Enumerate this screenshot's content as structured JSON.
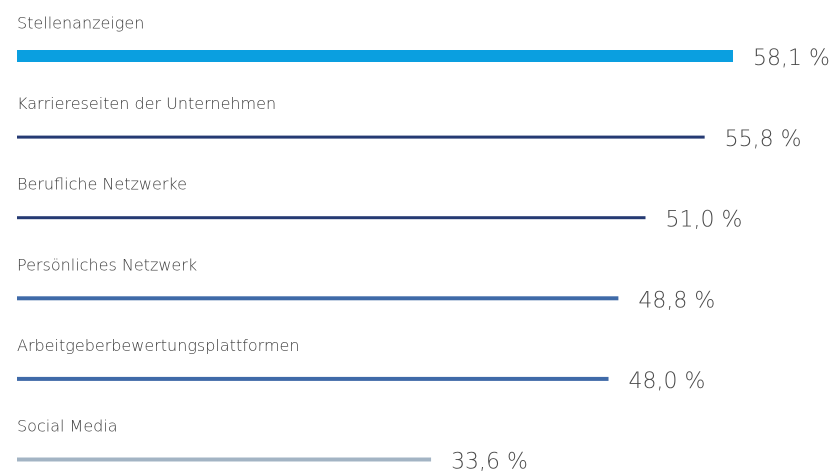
{
  "chart_data": {
    "type": "bar",
    "orientation": "horizontal",
    "categories": [
      "Stellenanzeigen",
      "Karriereseiten der Unternehmen",
      "Berufliche Netzwerke",
      "Persönliches Netzwerk",
      "Arbeitgeberbewertungsplattformen",
      "Social Media"
    ],
    "values": [
      58.1,
      55.8,
      51.0,
      48.8,
      48.0,
      33.6
    ],
    "value_labels": [
      "58,1 %",
      "55,8 %",
      "51,0 %",
      "48,8 %",
      "48,0 %",
      "33,6 %"
    ],
    "colors": [
      "#0a9fe0",
      "#253a73",
      "#253a73",
      "#3f6aa8",
      "#3f6aa8",
      "#a3b4c4"
    ]
  }
}
